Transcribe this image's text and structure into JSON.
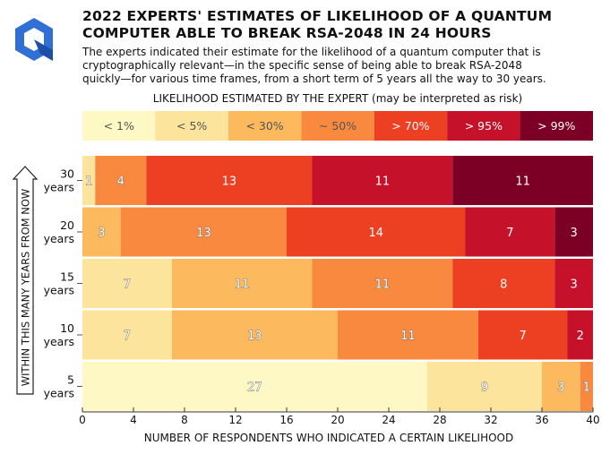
{
  "title_lines": [
    "2022 EXPERTS' ESTIMATES OF LIKELIHOOD OF A QUANTUM",
    "COMPUTER ABLE TO BREAK RSA-2048 IN 24 HOURS"
  ],
  "subtitle_lines": [
    "The experts indicated their estimate for the likelihood of a quantum computer that is",
    "cryptographically relevant—in the specific sense of being able to break RSA-2048",
    "quickly—for various time frames, from a short term of 5 years all the way to 30 years."
  ],
  "legend_caption": "LIKELIHOOD ESTIMATED BY THE EXPERT (may be interpreted as risk)",
  "chart_data": {
    "type": "bar",
    "orientation": "horizontal",
    "stacked": true,
    "categories": [
      "30 years",
      "20 years",
      "15 years",
      "10 years",
      "5 years"
    ],
    "series": [
      {
        "name": "< 1%",
        "color": "#fef8c4",
        "values": [
          0,
          0,
          0,
          0,
          27
        ]
      },
      {
        "name": "< 5%",
        "color": "#fde49d",
        "values": [
          1,
          0,
          7,
          7,
          9
        ]
      },
      {
        "name": "< 30%",
        "color": "#fcb95e",
        "values": [
          0,
          3,
          11,
          13,
          3
        ]
      },
      {
        "name": "~ 50%",
        "color": "#f9893f",
        "values": [
          4,
          13,
          11,
          11,
          1
        ]
      },
      {
        "name": "> 70%",
        "color": "#ed3f22",
        "values": [
          13,
          14,
          8,
          7,
          0
        ]
      },
      {
        "name": "> 95%",
        "color": "#c5112a",
        "values": [
          11,
          7,
          3,
          2,
          0
        ]
      },
      {
        "name": "> 99%",
        "color": "#7c0026",
        "values": [
          11,
          3,
          0,
          0,
          0
        ]
      }
    ],
    "xlabel": "NUMBER OF RESPONDENTS WHO INDICATED A CERTAIN LIKELIHOOD",
    "ylabel": "WITHIN THIS MANY YEARS FROM NOW",
    "xlim": [
      0,
      40
    ],
    "xticks": [
      0,
      4,
      8,
      12,
      16,
      20,
      24,
      28,
      32,
      36,
      40
    ],
    "legend_position": "top",
    "grid": false
  }
}
